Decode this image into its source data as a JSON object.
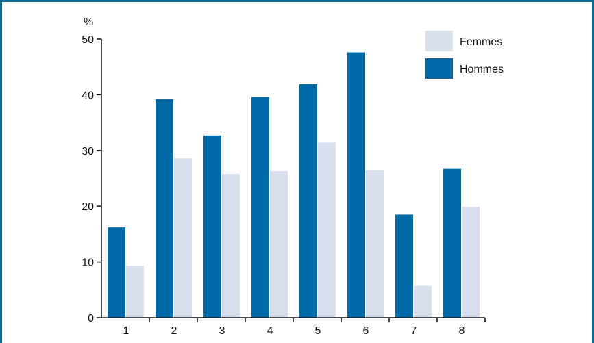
{
  "chart_data": {
    "type": "bar",
    "title": "",
    "xlabel": "",
    "ylabel": "%",
    "categories": [
      "1",
      "2",
      "3",
      "4",
      "5",
      "6",
      "7",
      "8"
    ],
    "ylim": [
      0,
      50
    ],
    "yticks": [
      "0",
      "10",
      "20",
      "30",
      "40",
      "50"
    ],
    "series": [
      {
        "name": "Hommes",
        "color": "#006aa9",
        "values": [
          16.2,
          39.2,
          32.7,
          39.6,
          41.9,
          47.6,
          18.5,
          26.7
        ]
      },
      {
        "name": "Femmes",
        "color": "#d8e0ef",
        "values": [
          9.3,
          28.6,
          25.8,
          26.3,
          31.4,
          26.4,
          5.7,
          19.9
        ]
      }
    ],
    "legend": {
      "position": "top-right",
      "entries": [
        {
          "label": "Femmes",
          "color": "#d8e0ef"
        },
        {
          "label": "Hommes",
          "color": "#006aa9"
        }
      ]
    },
    "grid": false
  },
  "colors": {
    "frame": "#0f6b8e",
    "axis": "#111111"
  }
}
